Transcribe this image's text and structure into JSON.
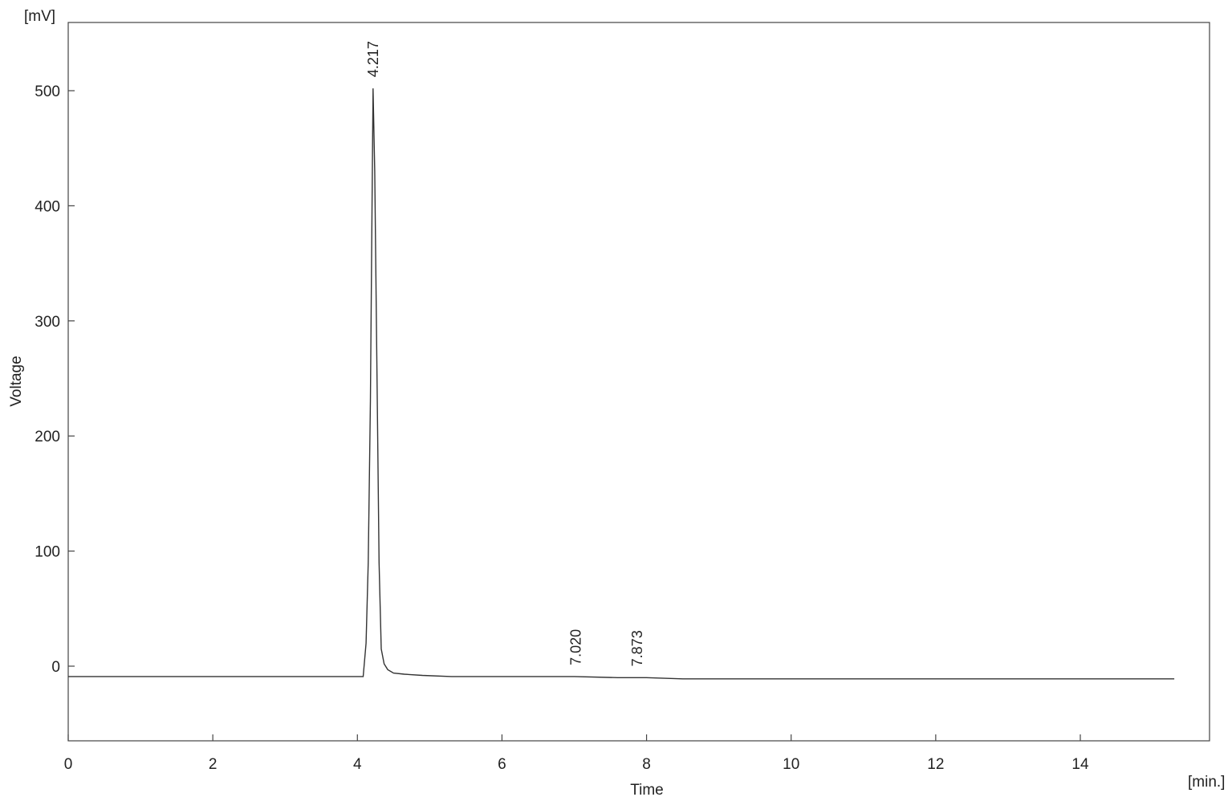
{
  "chart_data": {
    "type": "line",
    "title": "",
    "xlabel": "Time",
    "ylabel": "Voltage",
    "x_unit_label": "[min.]",
    "y_unit_label": "[mV]",
    "xlim": [
      0,
      15.8
    ],
    "ylim": [
      -65,
      560
    ],
    "x_ticks": [
      0,
      2,
      4,
      6,
      8,
      10,
      12,
      14
    ],
    "y_ticks": [
      0,
      100,
      200,
      300,
      400,
      500
    ],
    "grid": false,
    "line_color": "#333333",
    "series": [
      {
        "x": [
          0.0,
          1.0,
          2.0,
          3.0,
          4.0,
          4.08,
          4.12,
          4.15,
          4.18,
          4.2,
          4.217,
          4.24,
          4.27,
          4.3,
          4.33,
          4.37,
          4.42,
          4.5,
          4.65,
          4.9,
          5.3,
          6.0,
          7.0,
          7.6,
          8.0,
          8.5,
          9.0,
          10.0,
          11.0,
          12.0,
          13.0,
          14.0,
          15.3
        ],
        "y": [
          -9,
          -9,
          -9,
          -9,
          -9,
          -9,
          20,
          90,
          230,
          380,
          502,
          430,
          260,
          90,
          15,
          2,
          -3,
          -6,
          -7,
          -8,
          -9,
          -9,
          -9,
          -10,
          -10,
          -11,
          -11,
          -11,
          -11,
          -11,
          -11,
          -11,
          -11
        ]
      }
    ],
    "peaks": [
      {
        "time": 4.217,
        "label": "4.217",
        "height": 502
      },
      {
        "time": 7.02,
        "label": "7.020",
        "height": -9
      },
      {
        "time": 7.873,
        "label": "7.873",
        "height": -10
      }
    ]
  }
}
